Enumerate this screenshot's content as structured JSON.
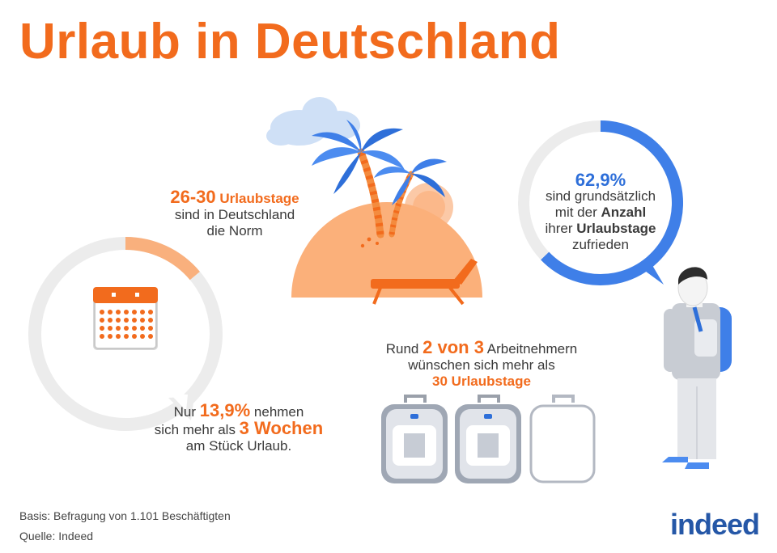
{
  "title": "Urlaub in Deutschland",
  "norm": {
    "range": "26-30",
    "unit": "Urlaubstage",
    "line2": "sind in Deutschland",
    "line3": "die Norm"
  },
  "satisfaction": {
    "percent": "62,9%",
    "value": 0.629,
    "line1": "sind grundsätzlich",
    "line2a": "mit der",
    "line2b": "Anzahl",
    "line3a": "ihrer",
    "line3b": "Urlaubstage",
    "line4": "zufrieden",
    "color": "#3f7fe8"
  },
  "weeks": {
    "prefix": "Nur",
    "percent": "13,9%",
    "value": 0.139,
    "mid": "nehmen",
    "line2a": "sich mehr als",
    "line2b": "3 Wochen",
    "line3": "am Stück Urlaub.",
    "color": "#f26b1d"
  },
  "workers": {
    "prefix": "Rund",
    "ratio": "2 von 3",
    "rest": "Arbeitnehmern",
    "line2": "wünschen sich mehr als",
    "line3": "30 Urlaubstage"
  },
  "footer": {
    "basis": "Basis: Befragung von 1.101 Beschäftigten",
    "source": "Quelle: Indeed",
    "logo": "indeed"
  },
  "icons": [
    "calendar-icon",
    "palm-tree-icon",
    "sun-icon",
    "cloud-icon",
    "sunbed-icon",
    "backpack-icon",
    "person-icon"
  ],
  "colors": {
    "accent": "#f26b1d",
    "blue": "#3f7fe8",
    "ring_bg": "#ececec"
  }
}
